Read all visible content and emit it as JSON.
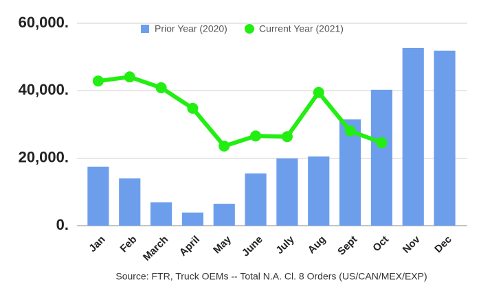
{
  "chart_data": {
    "type": "bar",
    "categories": [
      "Jan",
      "Feb",
      "March",
      "April",
      "May",
      "June",
      "July",
      "Aug",
      "Sept",
      "Oct",
      "Nov",
      "Dec"
    ],
    "series": [
      {
        "name": "Prior Year (2020)",
        "type": "bar",
        "color": "#6d9eeb",
        "values": [
          17500,
          14000,
          6900,
          3900,
          6500,
          15500,
          19900,
          20500,
          31500,
          40300,
          52700,
          51900
        ]
      },
      {
        "name": "Current Year (2021)",
        "type": "line",
        "color": "#22ee11",
        "values": [
          42900,
          44100,
          40900,
          34800,
          23600,
          26600,
          26400,
          39500,
          28100,
          24600,
          null,
          null
        ]
      }
    ],
    "ylim": [
      0,
      60000
    ],
    "yticks": [
      {
        "value": 0,
        "label": "0."
      },
      {
        "value": 20000,
        "label": "20,000."
      },
      {
        "value": 40000,
        "label": "40,000."
      },
      {
        "value": 60000,
        "label": "60,000."
      }
    ],
    "grid": true,
    "legend": "top",
    "source": "Source: FTR, Truck OEMs -- Total N.A. Cl. 8 Orders (US/CAN/MEX/EXP)"
  }
}
